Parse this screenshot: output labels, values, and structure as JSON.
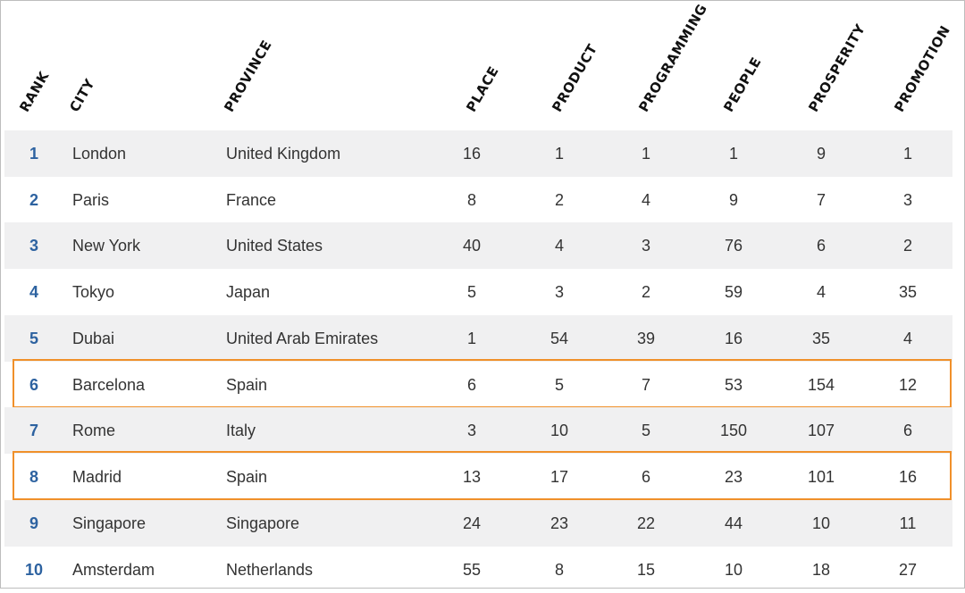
{
  "table": {
    "headers": {
      "rank": "RANK",
      "city": "CITY",
      "province": "PROVINCE",
      "place": "PLACE",
      "product": "PRODUCT",
      "programming": "PROGRAMMING",
      "people": "PEOPLE",
      "prosperity": "PROSPERITY",
      "promotion": "PROMOTION"
    },
    "rows": [
      {
        "rank": "1",
        "city": "London",
        "province": "United Kingdom",
        "place": "16",
        "product": "1",
        "programming": "1",
        "people": "1",
        "prosperity": "9",
        "promotion": "1",
        "highlighted": false
      },
      {
        "rank": "2",
        "city": "Paris",
        "province": "France",
        "place": "8",
        "product": "2",
        "programming": "4",
        "people": "9",
        "prosperity": "7",
        "promotion": "3",
        "highlighted": false
      },
      {
        "rank": "3",
        "city": "New York",
        "province": "United States",
        "place": "40",
        "product": "4",
        "programming": "3",
        "people": "76",
        "prosperity": "6",
        "promotion": "2",
        "highlighted": false
      },
      {
        "rank": "4",
        "city": "Tokyo",
        "province": "Japan",
        "place": "5",
        "product": "3",
        "programming": "2",
        "people": "59",
        "prosperity": "4",
        "promotion": "35",
        "highlighted": false
      },
      {
        "rank": "5",
        "city": "Dubai",
        "province": "United Arab Emirates",
        "place": "1",
        "product": "54",
        "programming": "39",
        "people": "16",
        "prosperity": "35",
        "promotion": "4",
        "highlighted": false
      },
      {
        "rank": "6",
        "city": "Barcelona",
        "province": "Spain",
        "place": "6",
        "product": "5",
        "programming": "7",
        "people": "53",
        "prosperity": "154",
        "promotion": "12",
        "highlighted": true
      },
      {
        "rank": "7",
        "city": "Rome",
        "province": "Italy",
        "place": "3",
        "product": "10",
        "programming": "5",
        "people": "150",
        "prosperity": "107",
        "promotion": "6",
        "highlighted": false
      },
      {
        "rank": "8",
        "city": "Madrid",
        "province": "Spain",
        "place": "13",
        "product": "17",
        "programming": "6",
        "people": "23",
        "prosperity": "101",
        "promotion": "16",
        "highlighted": true
      },
      {
        "rank": "9",
        "city": "Singapore",
        "province": "Singapore",
        "place": "24",
        "product": "23",
        "programming": "22",
        "people": "44",
        "prosperity": "10",
        "promotion": "11",
        "highlighted": false
      },
      {
        "rank": "10",
        "city": "Amsterdam",
        "province": "Netherlands",
        "place": "55",
        "product": "8",
        "programming": "15",
        "people": "10",
        "prosperity": "18",
        "promotion": "27",
        "highlighted": false
      }
    ]
  },
  "colors": {
    "rank_text": "#2d62a0",
    "row_shade": "#f0f0f1",
    "highlight_border": "#f0902a"
  }
}
